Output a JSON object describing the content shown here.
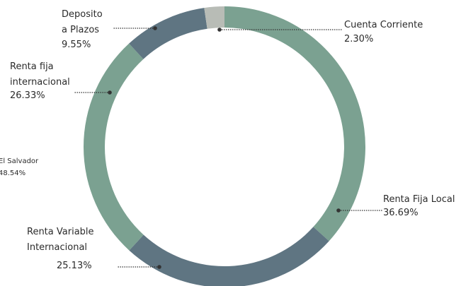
{
  "chart_data": {
    "type": "donut",
    "categories": [
      "Renta Fija Local",
      "Renta Variable\nInternacional",
      "Renta fija\ninternacional",
      "Deposito\na Plazos",
      "Cuenta Corriente"
    ],
    "values": [
      36.69,
      25.13,
      26.33,
      9.55,
      2.3
    ],
    "value_labels": [
      "36.69%",
      "25.13%",
      "26.33%",
      "9.55%",
      "2.30%"
    ],
    "colors": [
      "#7ba191",
      "#5f7582",
      "#7ba191",
      "#5f7582",
      "#b8bcb6"
    ],
    "annotations": [
      "El Salvador",
      "48.54%"
    ]
  }
}
